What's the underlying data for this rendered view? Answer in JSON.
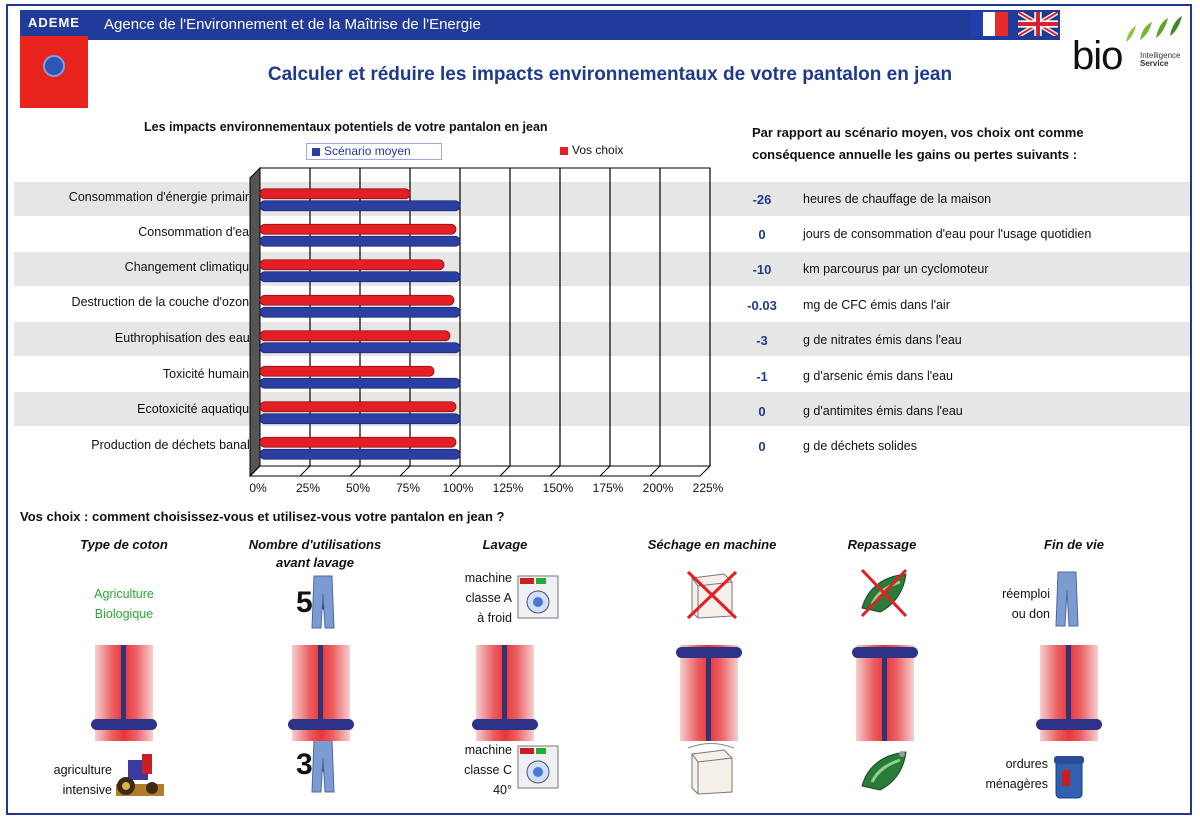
{
  "header": {
    "logo_text": "ADEME",
    "agency": "Agence de l'Environnement et de la Maîtrise de l'Energie",
    "title": "Calculer et réduire les impacts environnementaux de votre pantalon en jean",
    "partner_logo": {
      "word": "bio",
      "sub": [
        "Intelligence",
        "Service"
      ]
    },
    "languages": [
      "fr-flag-icon",
      "uk-flag-icon"
    ]
  },
  "chart_data": {
    "type": "bar",
    "title": "Les impacts environnementaux potentiels de votre pantalon en jean",
    "orientation": "horizontal",
    "categories": [
      "Consommation d'énergie primaire",
      "Consommation d'eau",
      "Changement climatique",
      "Destruction de la couche d'ozone",
      "Euthrophisation des eaux",
      "Toxicité humaine",
      "Ecotoxicité aquatique",
      "Production de déchets banals"
    ],
    "series": [
      {
        "name": "Scénario moyen",
        "color": "#2b3fa3",
        "values": [
          100,
          100,
          100,
          100,
          100,
          100,
          100,
          100
        ]
      },
      {
        "name": "Vos choix",
        "color": "#e31e24",
        "values": [
          75,
          98,
          92,
          97,
          95,
          87,
          98,
          98
        ]
      }
    ],
    "xticks": [
      "0%",
      "25%",
      "50%",
      "75%",
      "100%",
      "125%",
      "150%",
      "175%",
      "200%",
      "225%"
    ],
    "xlim": [
      0,
      225
    ],
    "grid": true,
    "legend_position": "top"
  },
  "gains": {
    "heading": [
      "Par rapport au scénario moyen, vos choix ont comme",
      "conséquence annuelle les gains ou pertes suivants :"
    ],
    "rows": [
      {
        "value": "-26",
        "unit": "heures de chauffage de la maison"
      },
      {
        "value": "0",
        "unit": "jours de consommation d'eau pour  l'usage quotidien"
      },
      {
        "value": "-10",
        "unit": "km parcourus par un cyclomoteur"
      },
      {
        "value": "-0.03",
        "unit": "mg de CFC émis dans l'air"
      },
      {
        "value": "-3",
        "unit": "g de nitrates émis dans l'eau"
      },
      {
        "value": "-1",
        "unit": "g d'arsenic émis dans l'eau"
      },
      {
        "value": "0",
        "unit": "g d'antimites émis dans l'eau"
      },
      {
        "value": "0",
        "unit": "g de déchets solides"
      }
    ]
  },
  "choices": {
    "title": "Vos choix : comment choisissez-vous et utilisez-vous votre pantalon en jean ?",
    "columns": [
      {
        "label": "Type de coton",
        "top_label": [
          "Agriculture",
          "Biologique"
        ],
        "bottom_label": [
          "agriculture",
          "intensive"
        ],
        "slider_level": 0,
        "top_icon": "",
        "bottom_icon": "tractor-icon"
      },
      {
        "label": [
          "Nombre d'utilisations",
          "avant lavage"
        ],
        "top_label": "5x",
        "bottom_label": "3x",
        "slider_level": 0,
        "top_icon": "jeans-icon",
        "bottom_icon": "jeans-icon"
      },
      {
        "label": "Lavage",
        "top_label": [
          "machine",
          "classe A",
          "à froid"
        ],
        "bottom_label": [
          "machine",
          "classe C",
          "40°"
        ],
        "slider_level": 0,
        "top_icon": "washing-machine-icon",
        "bottom_icon": "washing-machine-icon"
      },
      {
        "label": "Séchage en machine",
        "slider_level": 1,
        "top_icon": "dryer-crossed-icon",
        "bottom_icon": "dryer-icon"
      },
      {
        "label": "Repassage",
        "slider_level": 1,
        "top_icon": "iron-crossed-icon",
        "bottom_icon": "iron-icon"
      },
      {
        "label": "Fin de vie",
        "top_label": [
          "réemploi",
          "ou don"
        ],
        "bottom_label": [
          "ordures",
          "ménagères"
        ],
        "slider_level": 0,
        "top_icon": "jeans-icon",
        "bottom_icon": "trash-bin-icon"
      }
    ]
  }
}
